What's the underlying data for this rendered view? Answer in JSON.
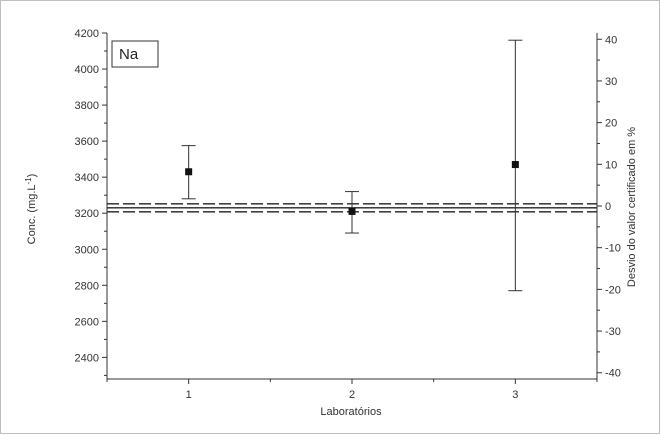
{
  "chart_data": {
    "type": "scatter",
    "title": "",
    "inset_label": "Na",
    "xlabel": "Laboratórios",
    "ylabel": "Conc. (mg.L",
    "ylabel_sup": "-1",
    "ylabel_close": ")",
    "y2label": "Desvio do valor certificado em %",
    "xlim": [
      0.5,
      3.5
    ],
    "ylim": [
      2280,
      4200
    ],
    "y2lim": [
      -41.5,
      41.5
    ],
    "x_ticks": [
      "1",
      "2",
      "3"
    ],
    "y_ticks": [
      "2400",
      "2600",
      "2800",
      "3000",
      "3200",
      "3400",
      "3600",
      "3800",
      "4000",
      "4200"
    ],
    "y2_ticks": [
      "-40",
      "-30",
      "-20",
      "-10",
      "0",
      "10",
      "20",
      "30",
      "40"
    ],
    "grid": false,
    "series": [
      {
        "x": [
          1,
          2,
          3
        ],
        "y": [
          3430,
          3210,
          3470
        ],
        "y_err_low": [
          3280,
          3090,
          2770
        ],
        "y_err_high": [
          3575,
          3320,
          4160
        ]
      }
    ],
    "reference_lines": {
      "certified_value": 3230,
      "upper_limit": 3252,
      "lower_limit": 3208
    }
  }
}
